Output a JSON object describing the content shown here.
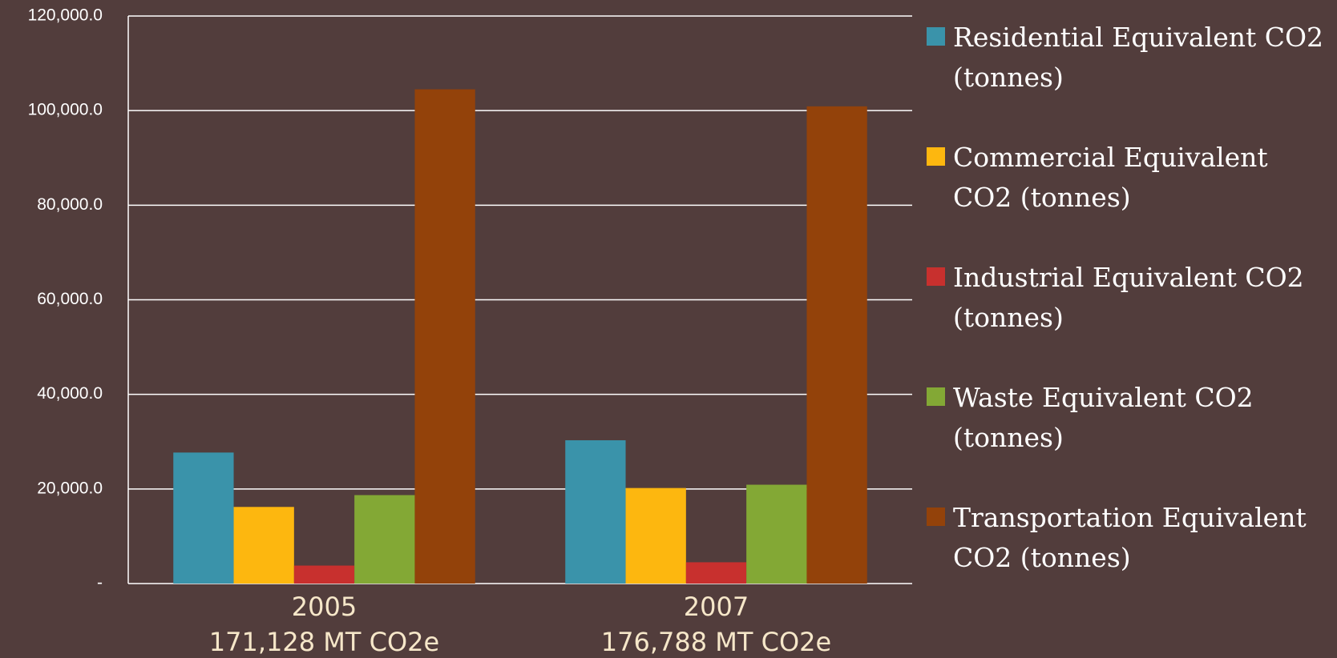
{
  "chart_data": {
    "type": "bar",
    "categories": [
      "2005",
      "2007"
    ],
    "category_totals": [
      "171,128 MT CO2e",
      "176,788 MT CO2e"
    ],
    "series": [
      {
        "name": "Residential Equivalent CO2 (tonnes)",
        "color": "#3a93aa",
        "values": [
          27700,
          30300
        ]
      },
      {
        "name": "Commercial Equivalent CO2 (tonnes)",
        "color": "#fdb70f",
        "values": [
          16200,
          20200
        ]
      },
      {
        "name": "Industrial Equivalent CO2 (tonnes)",
        "color": "#c8302e",
        "values": [
          3800,
          4500
        ]
      },
      {
        "name": "Waste Equivalent CO2 (tonnes)",
        "color": "#83a835",
        "values": [
          18700,
          20900
        ]
      },
      {
        "name": "Transportation Equivalent CO2 (tonnes)",
        "color": "#93420a",
        "values": [
          104500,
          100900
        ]
      }
    ],
    "ylim": [
      0,
      120000
    ],
    "yticks": [
      {
        "value": 0,
        "label": "-"
      },
      {
        "value": 20000,
        "label": "20,000.0"
      },
      {
        "value": 40000,
        "label": "40,000.0"
      },
      {
        "value": 60000,
        "label": "60,000.0"
      },
      {
        "value": 80000,
        "label": "80,000.0"
      },
      {
        "value": 100000,
        "label": "100,000.0"
      },
      {
        "value": 120000,
        "label": "120,000.0"
      }
    ],
    "grid": true,
    "legend": "right"
  }
}
